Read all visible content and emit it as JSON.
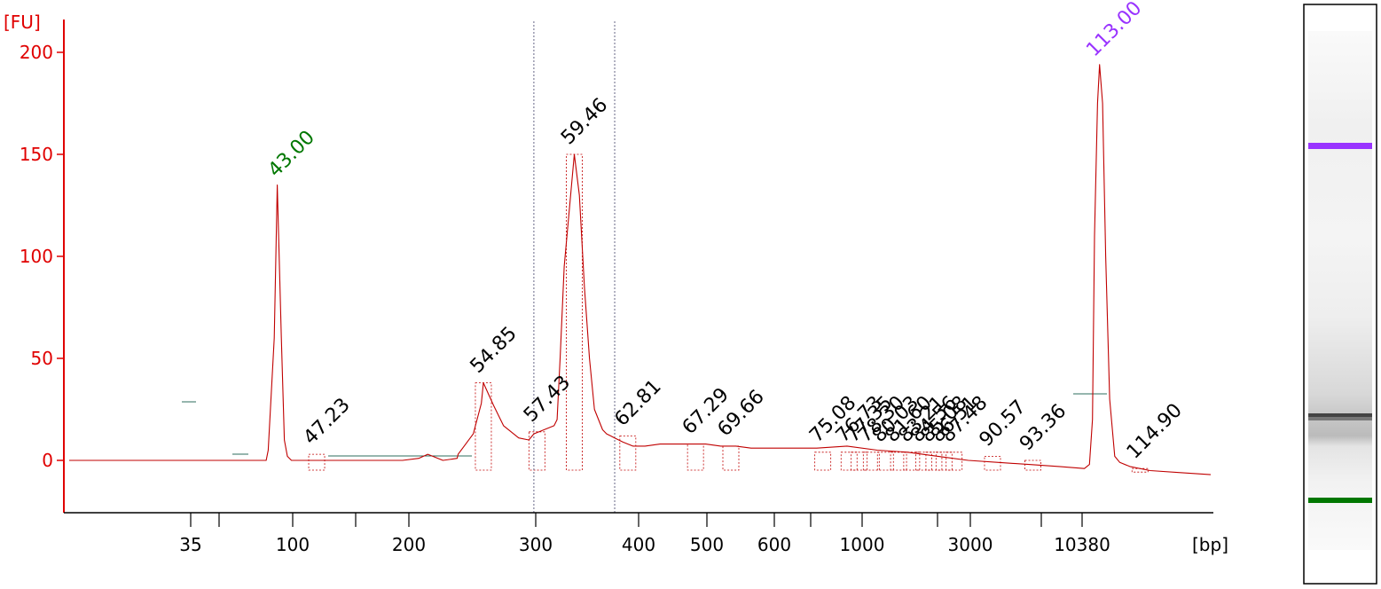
{
  "chart_data": {
    "type": "line",
    "title": "",
    "ylabel": "[FU]",
    "xlabel": "[bp]",
    "ylim": [
      -25,
      215
    ],
    "y_ticks": [
      0,
      50,
      100,
      150,
      200
    ],
    "x_ticks": [
      "35",
      "100",
      "200",
      "300",
      "400",
      "500",
      "600",
      "1000",
      "3000",
      "10380"
    ],
    "x_minor_ticks": [
      "~60",
      "~150",
      "~700",
      "~2000",
      "~7000"
    ],
    "grid": false,
    "colors": {
      "axis_y": "#e00000",
      "axis_x": "#000000",
      "trace": "#c00000",
      "lower_marker": "#007700",
      "upper_marker": "#9933ff",
      "peak_label": "#000000",
      "baseline_segment": "#2e6e5e",
      "region_line": "#555577"
    },
    "series": [
      {
        "name": "fluorescence",
        "x": [
          0.0,
          19.5,
          19.7,
          20.3,
          20.6,
          21.0,
          21.3,
          21.6,
          22.0,
          27.0,
          33.0,
          34.6,
          35.5,
          37.0,
          38.4,
          38.5,
          40.0,
          40.8,
          41.0,
          42.0,
          43.0,
          44.5,
          45.5,
          46.0,
          47.0,
          48.0,
          48.3,
          48.6,
          49.0,
          50.0,
          50.5,
          51.0,
          51.5,
          52.0,
          52.8,
          53.2,
          53.6,
          54.0,
          54.8,
          55.8,
          57.0,
          58.5,
          60.0,
          61.5,
          63.0,
          64.5,
          66.0,
          67.5,
          69.5,
          72.0,
          74.0,
          77.0,
          80.0,
          83.0,
          86.0,
          89.0,
          92.0,
          95.0,
          98.0,
          100.5,
          101.0,
          101.3,
          101.5,
          101.8,
          102.0,
          102.3,
          102.6,
          103.0,
          103.5,
          104.0,
          105.0,
          107.0,
          110.0,
          113.0
        ],
        "values": [
          0,
          0,
          5,
          60,
          135,
          60,
          10,
          2,
          0,
          0,
          0,
          1,
          3,
          0,
          1,
          3,
          13,
          28,
          38,
          27,
          17,
          11,
          10,
          13,
          15,
          17,
          20,
          50,
          95,
          150,
          130,
          85,
          50,
          25,
          15,
          13,
          12,
          11,
          9,
          7,
          7,
          8,
          8,
          8,
          8,
          7,
          7,
          6,
          6,
          6,
          6,
          7,
          5,
          4,
          2,
          0,
          -1,
          -2,
          -3,
          -4,
          -2,
          20,
          110,
          175,
          194,
          175,
          100,
          30,
          2,
          -1,
          -3,
          -5,
          -6,
          -7
        ]
      }
    ],
    "markers": [
      {
        "label": "43.00",
        "time": 21.0,
        "height": 135,
        "role": "lower"
      },
      {
        "label": "113.00",
        "time": 102.0,
        "height": 194,
        "role": "upper"
      }
    ],
    "peaks": [
      {
        "label": "47.23",
        "time": 24.5,
        "level": 3
      },
      {
        "label": "54.85",
        "time": 41.0,
        "level": 38
      },
      {
        "label": "57.43",
        "time": 46.3,
        "level": 14
      },
      {
        "label": "59.46",
        "time": 50.0,
        "level": 150
      },
      {
        "label": "62.81",
        "time": 55.3,
        "level": 12
      },
      {
        "label": "67.29",
        "time": 62.0,
        "level": 8
      },
      {
        "label": "69.66",
        "time": 65.5,
        "level": 7
      },
      {
        "label": "75.08",
        "time": 74.6,
        "level": 4
      },
      {
        "label": "76.73",
        "time": 77.2,
        "level": 4
      },
      {
        "label": "77.35",
        "time": 78.2,
        "level": 4
      },
      {
        "label": "78.30",
        "time": 79.4,
        "level": 4
      },
      {
        "label": "80.03",
        "time": 80.8,
        "level": 4
      },
      {
        "label": "81.60",
        "time": 82.1,
        "level": 4
      },
      {
        "label": "83.21",
        "time": 83.4,
        "level": 4
      },
      {
        "label": "84.56",
        "time": 84.6,
        "level": 4
      },
      {
        "label": "85.08",
        "time": 85.6,
        "level": 4
      },
      {
        "label": "86.51",
        "time": 86.6,
        "level": 4
      },
      {
        "label": "87.48",
        "time": 87.6,
        "level": 4
      },
      {
        "label": "90.57",
        "time": 91.4,
        "level": 2
      },
      {
        "label": "93.36",
        "time": 95.4,
        "level": 0
      },
      {
        "label": "114.90",
        "time": 106.0,
        "level": -4
      }
    ],
    "region_lines": [
      {
        "time": 46.0
      },
      {
        "time": 54.0
      }
    ]
  }
}
